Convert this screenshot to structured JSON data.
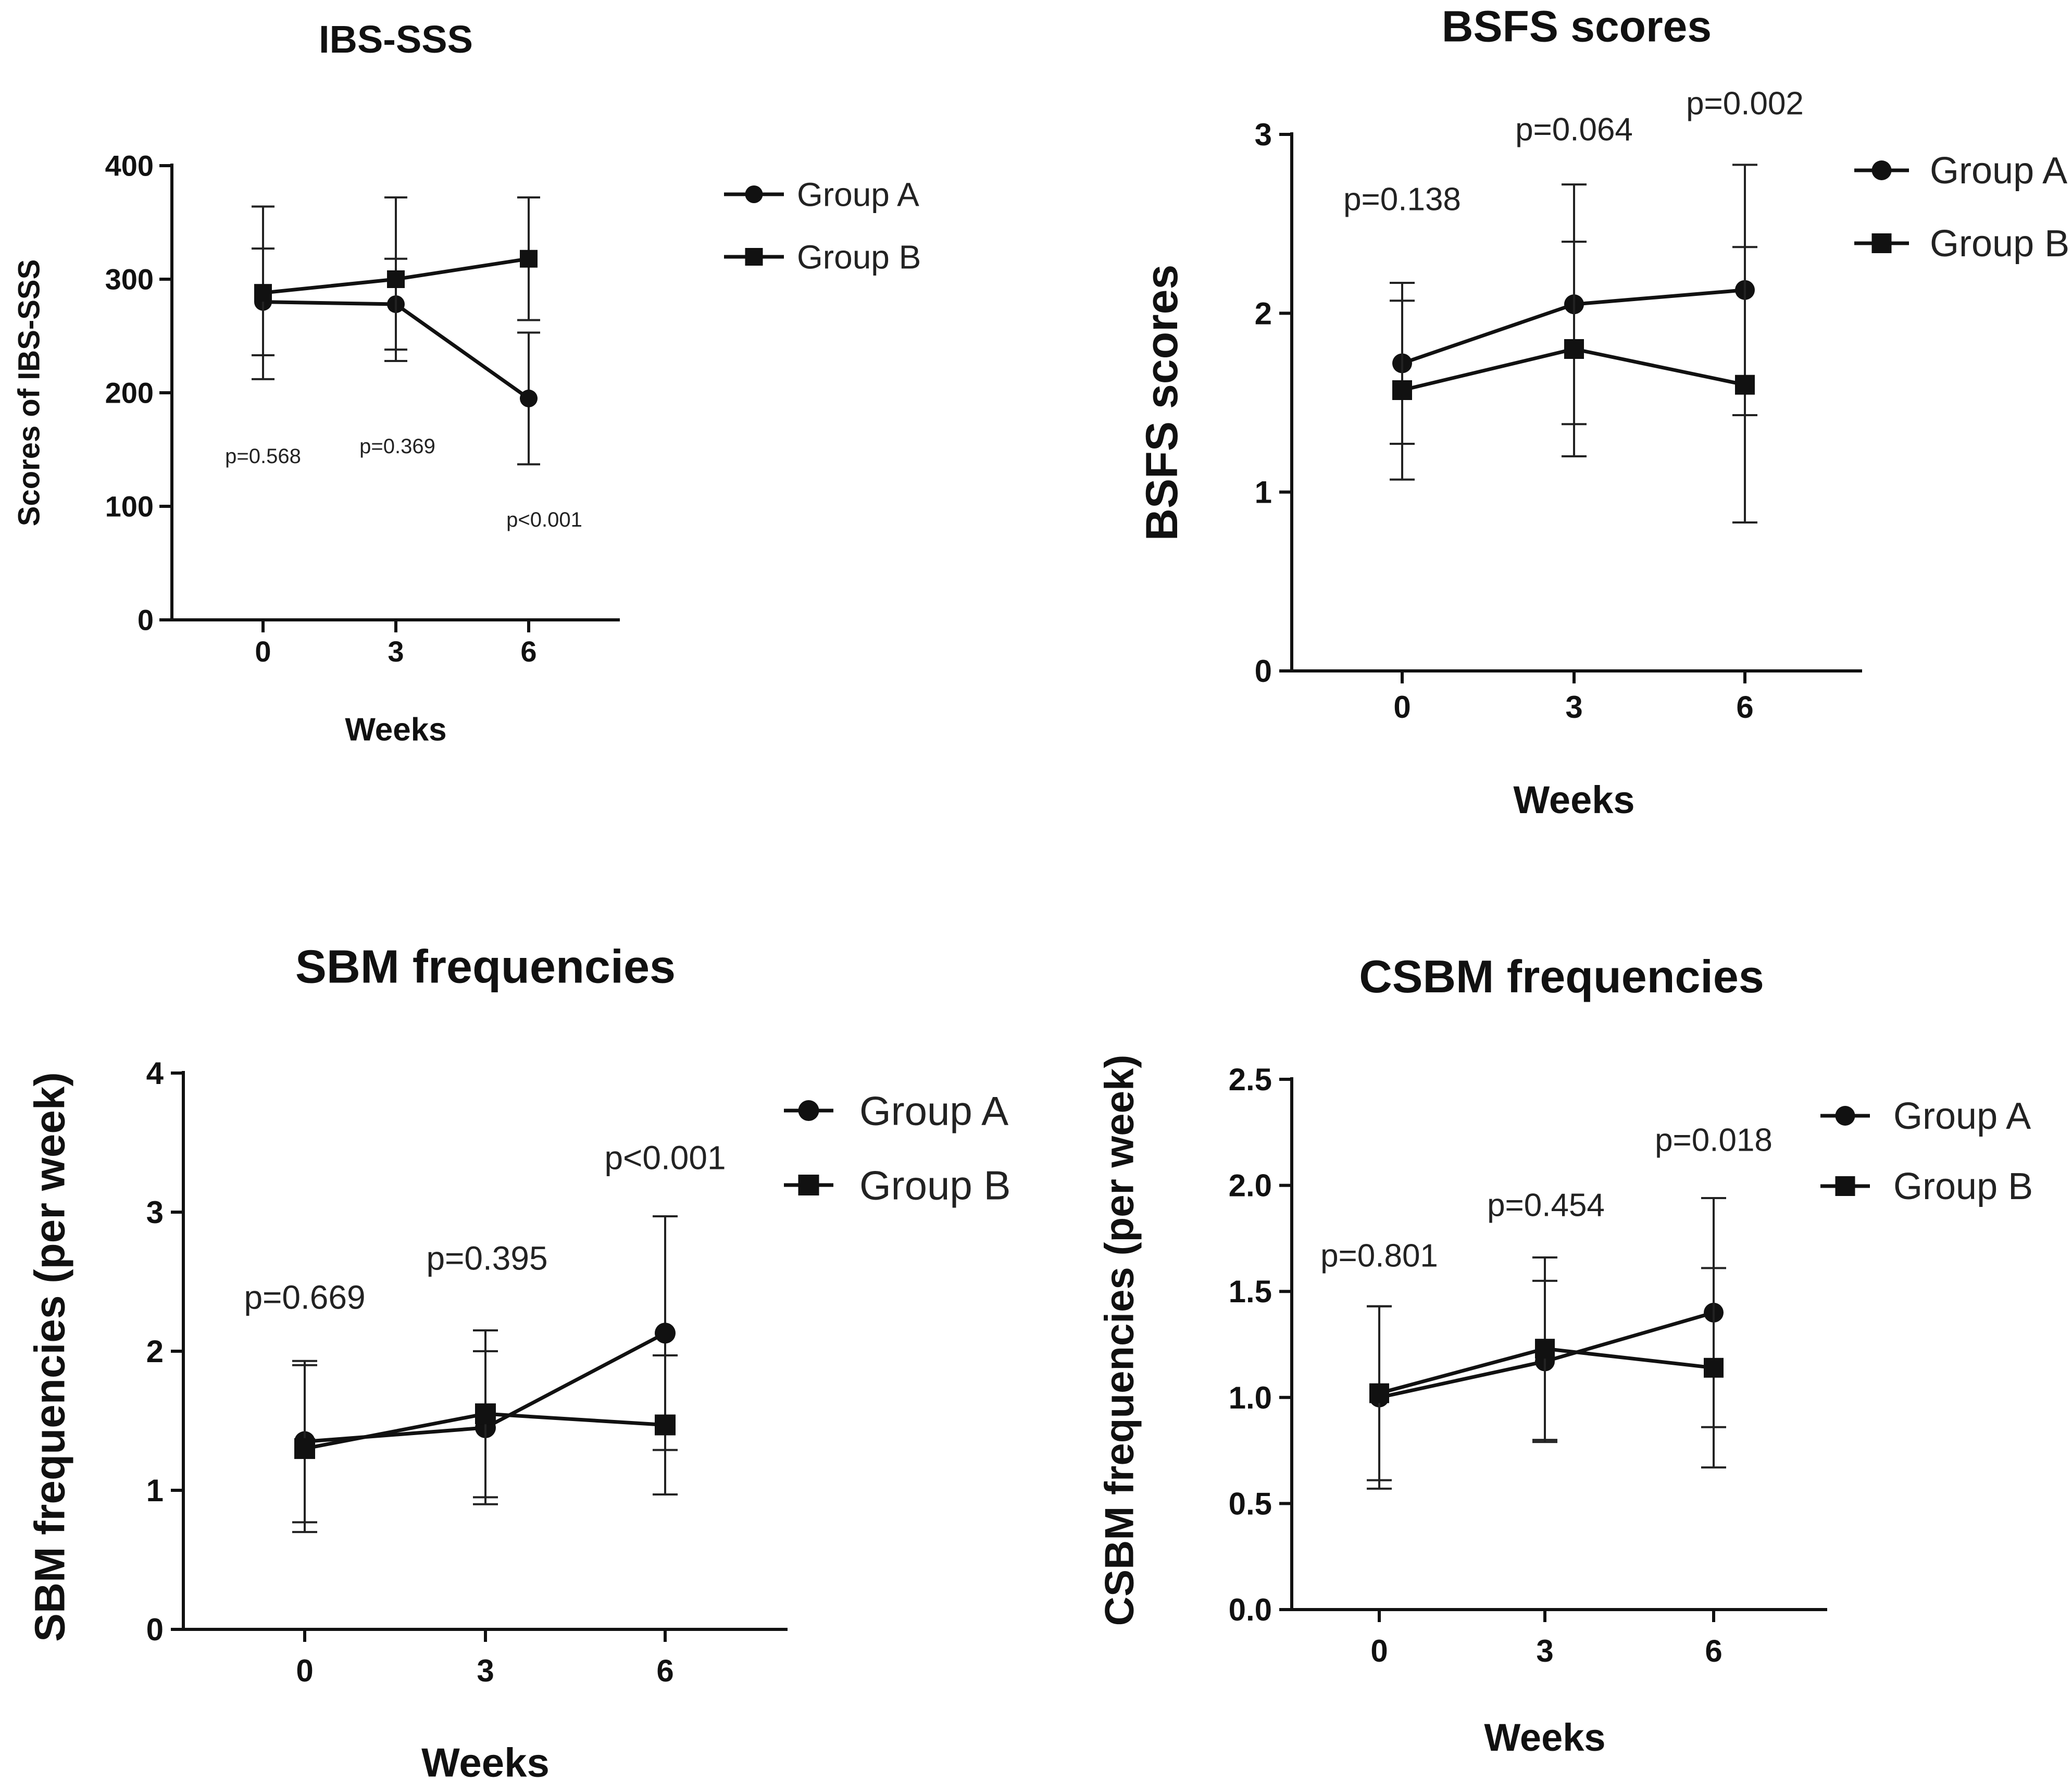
{
  "colors": {
    "ink": "#111111",
    "background": "#ffffff"
  },
  "chart_data": [
    {
      "type": "line",
      "title": "IBS-SSS",
      "xlabel": "Weeks",
      "ylabel": "Scores of IBS-SSS",
      "x": [
        0,
        3,
        6
      ],
      "x_tick_labels": [
        "0",
        "3",
        "6"
      ],
      "ylim": [
        0,
        400
      ],
      "y_ticks": [
        0,
        100,
        200,
        300,
        400
      ],
      "y_tick_labels": [
        "0",
        "100",
        "200",
        "300",
        "400"
      ],
      "legend_position": "right",
      "series": [
        {
          "name": "Group A",
          "marker": "circle",
          "values": [
            280,
            278,
            195
          ],
          "err_up": [
            47,
            40,
            58
          ],
          "err_down": [
            47,
            40,
            58
          ]
        },
        {
          "name": "Group B",
          "marker": "square",
          "values": [
            288,
            300,
            318
          ],
          "err_up": [
            76,
            72,
            54
          ],
          "err_down": [
            76,
            72,
            54
          ]
        }
      ],
      "annotations": [
        "p=0.568",
        "p=0.369",
        "p<0.001"
      ]
    },
    {
      "type": "line",
      "title": "BSFS scores",
      "xlabel": "Weeks",
      "ylabel": "BSFS scores",
      "x": [
        0,
        3,
        6
      ],
      "x_tick_labels": [
        "0",
        "3",
        "6"
      ],
      "ylim": [
        0,
        3
      ],
      "y_ticks": [
        0,
        1,
        2,
        3
      ],
      "y_tick_labels": [
        "0",
        "1",
        "2",
        "3"
      ],
      "legend_position": "right",
      "series": [
        {
          "name": "Group A",
          "marker": "circle",
          "values": [
            1.72,
            2.05,
            2.13
          ],
          "err_up": [
            0.45,
            0.67,
            0.7
          ],
          "err_down": [
            0.45,
            0.67,
            0.7
          ]
        },
        {
          "name": "Group B",
          "marker": "square",
          "values": [
            1.57,
            1.8,
            1.6
          ],
          "err_up": [
            0.5,
            0.6,
            0.77
          ],
          "err_down": [
            0.5,
            0.6,
            0.77
          ]
        }
      ],
      "annotations": [
        "p=0.138",
        "p=0.064",
        "p=0.002"
      ]
    },
    {
      "type": "line",
      "title": "SBM frequencies",
      "xlabel": "Weeks",
      "ylabel": "SBM frequencies (per week)",
      "x": [
        0,
        3,
        6
      ],
      "x_tick_labels": [
        "0",
        "3",
        "6"
      ],
      "ylim": [
        0,
        4
      ],
      "y_ticks": [
        0,
        1,
        2,
        3,
        4
      ],
      "y_tick_labels": [
        "0",
        "1",
        "2",
        "3",
        "4"
      ],
      "legend_position": "right",
      "series": [
        {
          "name": "Group A",
          "marker": "circle",
          "values": [
            1.35,
            1.45,
            2.13
          ],
          "err_up": [
            0.58,
            0.55,
            0.84
          ],
          "err_down": [
            0.58,
            0.55,
            0.84
          ]
        },
        {
          "name": "Group B",
          "marker": "square",
          "values": [
            1.3,
            1.55,
            1.47
          ],
          "err_up": [
            0.6,
            0.6,
            0.5
          ],
          "err_down": [
            0.6,
            0.6,
            0.5
          ]
        }
      ],
      "annotations": [
        "p=0.669",
        "p=0.395",
        "p<0.001"
      ]
    },
    {
      "type": "line",
      "title": "CSBM frequencies",
      "xlabel": "Weeks",
      "ylabel": "CSBM frequencies (per week)",
      "x": [
        0,
        3,
        6
      ],
      "x_tick_labels": [
        "0",
        "3",
        "6"
      ],
      "ylim": [
        0,
        2.5
      ],
      "y_ticks": [
        0,
        0.5,
        1,
        1.5,
        2,
        2.5
      ],
      "y_tick_labels": [
        "0.0",
        "0.5",
        "1.0",
        "1.5",
        "2.0",
        "2.5"
      ],
      "legend_position": "right",
      "series": [
        {
          "name": "Group A",
          "marker": "circle",
          "values": [
            1.0,
            1.17,
            1.4
          ],
          "err_up": [
            0.43,
            0.38,
            0.54
          ],
          "err_down": [
            0.43,
            0.38,
            0.54
          ]
        },
        {
          "name": "Group B",
          "marker": "square",
          "values": [
            1.02,
            1.23,
            1.14
          ],
          "err_up": [
            0.41,
            0.43,
            0.47
          ],
          "err_down": [
            0.41,
            0.43,
            0.47
          ]
        }
      ],
      "annotations": [
        "p=0.801",
        "p=0.454",
        "p=0.018"
      ]
    }
  ]
}
